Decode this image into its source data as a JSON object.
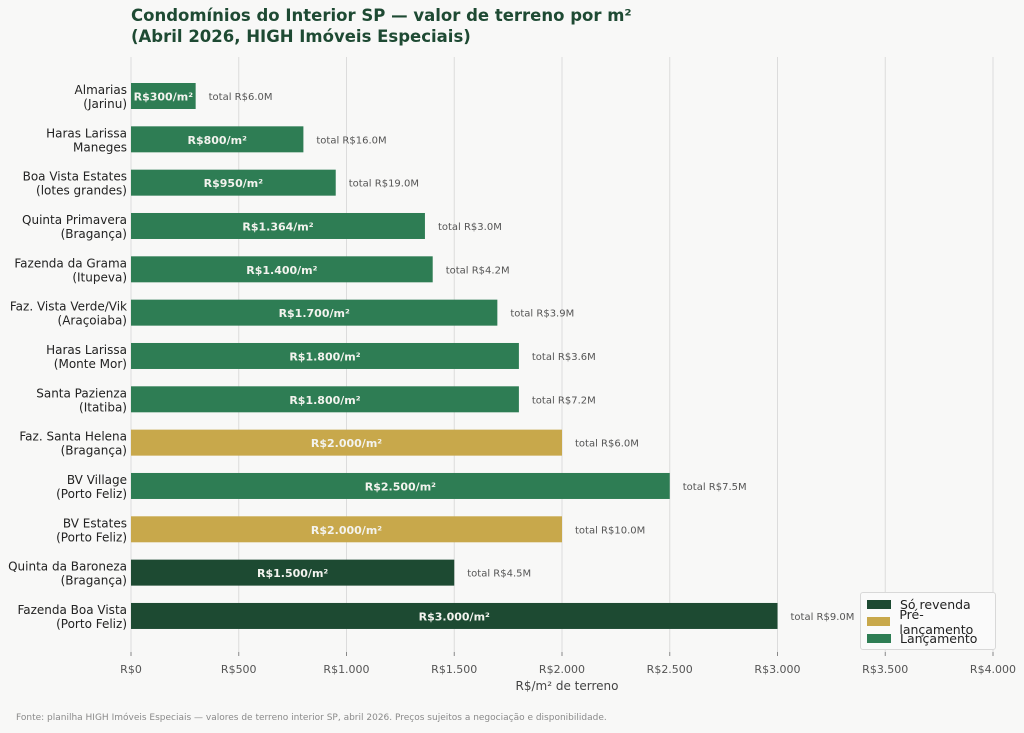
{
  "chart_data": {
    "type": "bar",
    "orientation": "horizontal",
    "title": "Condomínios do Interior SP — valor de terreno por m²\n(Abril 2026, HIGH Imóveis Especiais)",
    "xlabel": "R$/m² de terreno",
    "ylabel": "",
    "xlim": [
      0,
      4000
    ],
    "xticks": [
      0,
      500,
      1000,
      1500,
      2000,
      2500,
      3000,
      3500,
      4000
    ],
    "xtick_labels": [
      "R$0",
      "R$500",
      "R$1.000",
      "R$1.500",
      "R$2.000",
      "R$2.500",
      "R$3.000",
      "R$3.500",
      "R$4.000"
    ],
    "grid": "vertical",
    "legend_position": "bottom-right",
    "legend": [
      {
        "name": "Só revenda",
        "color": "#1d4a32"
      },
      {
        "name": "Pré-lançamento",
        "color": "#c8a84b"
      },
      {
        "name": "Lançamento",
        "color": "#2e7d54"
      }
    ],
    "categories": [
      {
        "label": [
          "Almarias",
          "(Jarinu)"
        ],
        "value": 300,
        "value_label": "R$300/m²",
        "total_label": "total R$6.0M",
        "status": "Lançamento"
      },
      {
        "label": [
          "Haras Larissa",
          "Maneges"
        ],
        "value": 800,
        "value_label": "R$800/m²",
        "total_label": "total R$16.0M",
        "status": "Lançamento"
      },
      {
        "label": [
          "Boa Vista Estates",
          "(lotes grandes)"
        ],
        "value": 950,
        "value_label": "R$950/m²",
        "total_label": "total R$19.0M",
        "status": "Lançamento"
      },
      {
        "label": [
          "Quinta Primavera",
          "(Bragança)"
        ],
        "value": 1364,
        "value_label": "R$1.364/m²",
        "total_label": "total R$3.0M",
        "status": "Lançamento"
      },
      {
        "label": [
          "Fazenda da Grama",
          "(Itupeva)"
        ],
        "value": 1400,
        "value_label": "R$1.400/m²",
        "total_label": "total R$4.2M",
        "status": "Lançamento"
      },
      {
        "label": [
          "Faz. Vista Verde/Vik",
          "(Araçoiaba)"
        ],
        "value": 1700,
        "value_label": "R$1.700/m²",
        "total_label": "total R$3.9M",
        "status": "Lançamento"
      },
      {
        "label": [
          "Haras Larissa",
          "(Monte Mor)"
        ],
        "value": 1800,
        "value_label": "R$1.800/m²",
        "total_label": "total R$3.6M",
        "status": "Lançamento"
      },
      {
        "label": [
          "Santa Pazienza",
          "(Itatiba)"
        ],
        "value": 1800,
        "value_label": "R$1.800/m²",
        "total_label": "total R$7.2M",
        "status": "Lançamento"
      },
      {
        "label": [
          "Faz. Santa Helena",
          "(Bragança)"
        ],
        "value": 2000,
        "value_label": "R$2.000/m²",
        "total_label": "total R$6.0M",
        "status": "Pré-lançamento"
      },
      {
        "label": [
          "BV Village",
          "(Porto Feliz)"
        ],
        "value": 2500,
        "value_label": "R$2.500/m²",
        "total_label": "total R$7.5M",
        "status": "Lançamento"
      },
      {
        "label": [
          "BV Estates",
          "(Porto Feliz)"
        ],
        "value": 2000,
        "value_label": "R$2.000/m²",
        "total_label": "total R$10.0M",
        "status": "Pré-lançamento"
      },
      {
        "label": [
          "Quinta da Baroneza",
          "(Bragança)"
        ],
        "value": 1500,
        "value_label": "R$1.500/m²",
        "total_label": "total R$4.5M",
        "status": "Só revenda"
      },
      {
        "label": [
          "Fazenda Boa Vista",
          "(Porto Feliz)"
        ],
        "value": 3000,
        "value_label": "R$3.000/m²",
        "total_label": "total R$9.0M",
        "status": "Só revenda"
      }
    ],
    "footnote": "Fonte: planilha HIGH Imóveis Especiais — valores de terreno interior SP, abril 2026. Preços sujeitos a negociação e disponibilidade."
  }
}
